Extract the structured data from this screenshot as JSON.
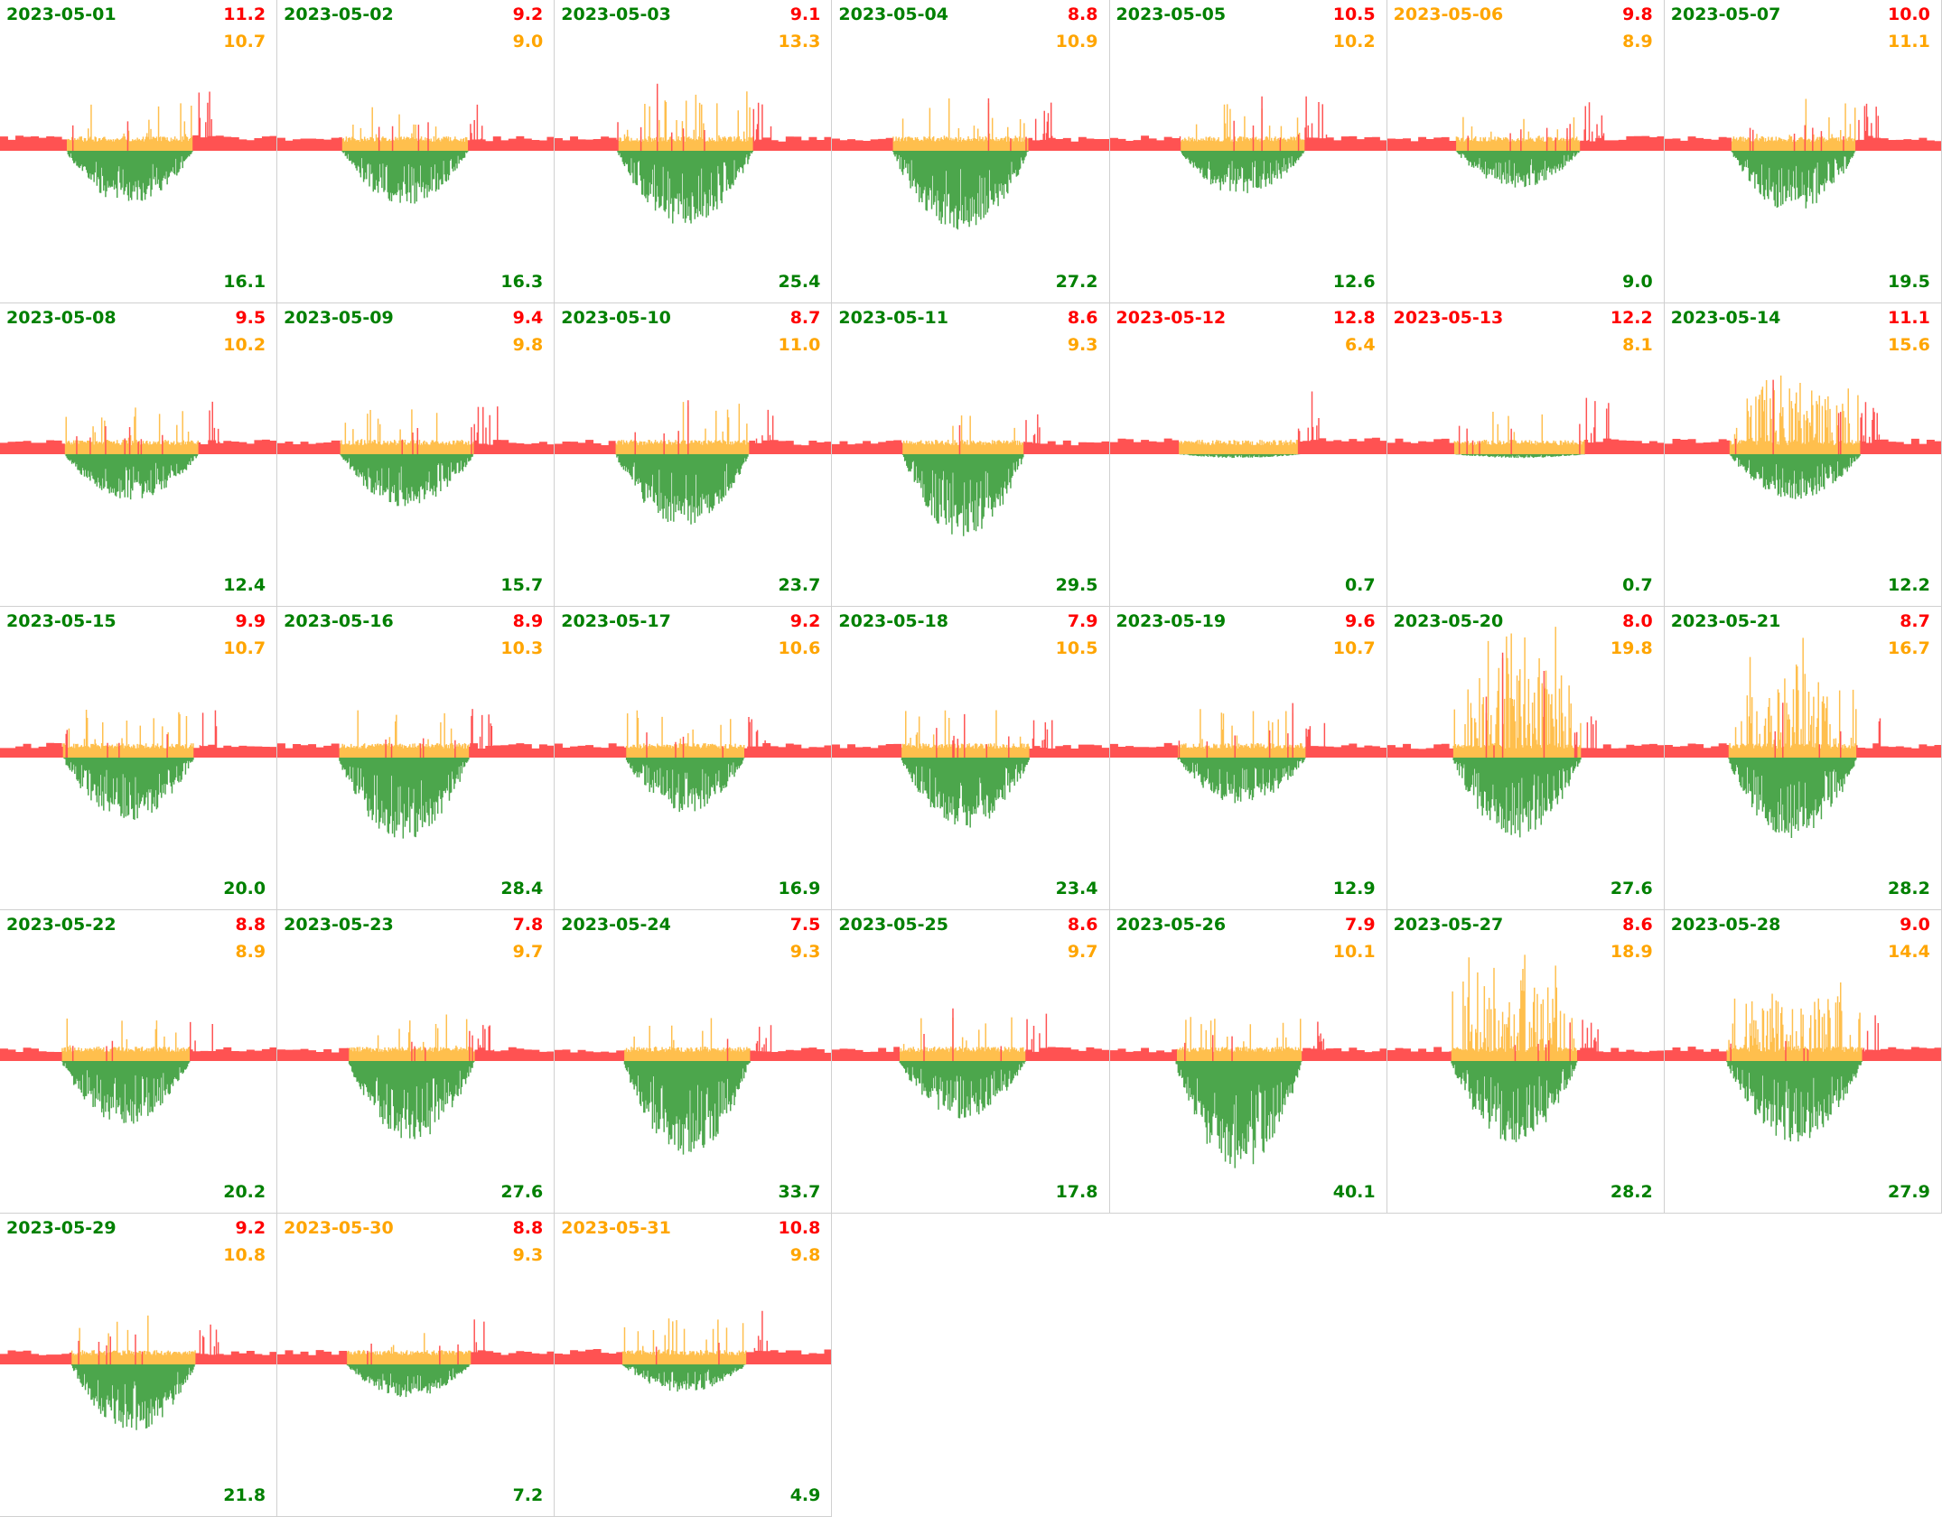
{
  "colors": {
    "import": "#ff5252",
    "self": "#ffbf4d",
    "export": "#4ca64c",
    "green_text": "#008000",
    "orange_text": "#ffa500",
    "red_text": "#ff0000"
  },
  "days": [
    {
      "date": "2023-05-01",
      "date_color": "green",
      "red": "11.2",
      "orange": "10.7",
      "green": "16.1"
    },
    {
      "date": "2023-05-02",
      "date_color": "green",
      "red": "9.2",
      "orange": "9.0",
      "green": "16.3"
    },
    {
      "date": "2023-05-03",
      "date_color": "green",
      "red": "9.1",
      "orange": "13.3",
      "green": "25.4"
    },
    {
      "date": "2023-05-04",
      "date_color": "green",
      "red": "8.8",
      "orange": "10.9",
      "green": "27.2"
    },
    {
      "date": "2023-05-05",
      "date_color": "green",
      "red": "10.5",
      "orange": "10.2",
      "green": "12.6"
    },
    {
      "date": "2023-05-06",
      "date_color": "orange",
      "red": "9.8",
      "orange": "8.9",
      "green": "9.0"
    },
    {
      "date": "2023-05-07",
      "date_color": "green",
      "red": "10.0",
      "orange": "11.1",
      "green": "19.5"
    },
    {
      "date": "2023-05-08",
      "date_color": "green",
      "red": "9.5",
      "orange": "10.2",
      "green": "12.4"
    },
    {
      "date": "2023-05-09",
      "date_color": "green",
      "red": "9.4",
      "orange": "9.8",
      "green": "15.7"
    },
    {
      "date": "2023-05-10",
      "date_color": "green",
      "red": "8.7",
      "orange": "11.0",
      "green": "23.7"
    },
    {
      "date": "2023-05-11",
      "date_color": "green",
      "red": "8.6",
      "orange": "9.3",
      "green": "29.5"
    },
    {
      "date": "2023-05-12",
      "date_color": "red",
      "red": "12.8",
      "orange": "6.4",
      "green": "0.7"
    },
    {
      "date": "2023-05-13",
      "date_color": "red",
      "red": "12.2",
      "orange": "8.1",
      "green": "0.7"
    },
    {
      "date": "2023-05-14",
      "date_color": "green",
      "red": "11.1",
      "orange": "15.6",
      "green": "12.2"
    },
    {
      "date": "2023-05-15",
      "date_color": "green",
      "red": "9.9",
      "orange": "10.7",
      "green": "20.0"
    },
    {
      "date": "2023-05-16",
      "date_color": "green",
      "red": "8.9",
      "orange": "10.3",
      "green": "28.4"
    },
    {
      "date": "2023-05-17",
      "date_color": "green",
      "red": "9.2",
      "orange": "10.6",
      "green": "16.9"
    },
    {
      "date": "2023-05-18",
      "date_color": "green",
      "red": "7.9",
      "orange": "10.5",
      "green": "23.4"
    },
    {
      "date": "2023-05-19",
      "date_color": "green",
      "red": "9.6",
      "orange": "10.7",
      "green": "12.9"
    },
    {
      "date": "2023-05-20",
      "date_color": "green",
      "red": "8.0",
      "orange": "19.8",
      "green": "27.6"
    },
    {
      "date": "2023-05-21",
      "date_color": "green",
      "red": "8.7",
      "orange": "16.7",
      "green": "28.2"
    },
    {
      "date": "2023-05-22",
      "date_color": "green",
      "red": "8.8",
      "orange": "8.9",
      "green": "20.2"
    },
    {
      "date": "2023-05-23",
      "date_color": "green",
      "red": "7.8",
      "orange": "9.7",
      "green": "27.6"
    },
    {
      "date": "2023-05-24",
      "date_color": "green",
      "red": "7.5",
      "orange": "9.3",
      "green": "33.7"
    },
    {
      "date": "2023-05-25",
      "date_color": "green",
      "red": "8.6",
      "orange": "9.7",
      "green": "17.8"
    },
    {
      "date": "2023-05-26",
      "date_color": "green",
      "red": "7.9",
      "orange": "10.1",
      "green": "40.1"
    },
    {
      "date": "2023-05-27",
      "date_color": "green",
      "red": "8.6",
      "orange": "18.9",
      "green": "28.2"
    },
    {
      "date": "2023-05-28",
      "date_color": "green",
      "red": "9.0",
      "orange": "14.4",
      "green": "27.9"
    },
    {
      "date": "2023-05-29",
      "date_color": "green",
      "red": "9.2",
      "orange": "10.8",
      "green": "21.8"
    },
    {
      "date": "2023-05-30",
      "date_color": "orange",
      "red": "8.8",
      "orange": "9.3",
      "green": "7.2"
    },
    {
      "date": "2023-05-31",
      "date_color": "orange",
      "red": "10.8",
      "orange": "9.8",
      "green": "4.9"
    }
  ]
}
